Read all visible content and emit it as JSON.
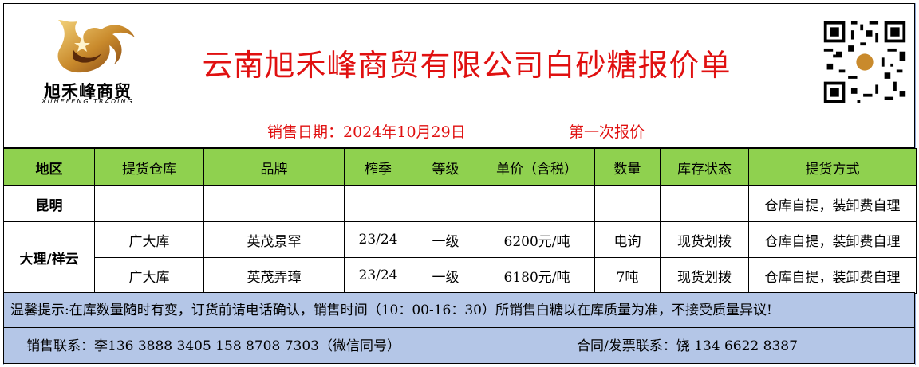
{
  "header": {
    "logo_cn": "旭禾峰商贸",
    "logo_en": "XUHEFENG TRADING",
    "title": "云南旭禾峰商贸有限公司白砂糖报价单",
    "title_color": "#e01010"
  },
  "date_row": {
    "date_text": "销售日期：2024年10月29日",
    "round_text": "第一次报价"
  },
  "table": {
    "header_color": "#8fd14f",
    "columns": [
      "地区",
      "提货仓库",
      "品牌",
      "榨季",
      "等级",
      "单价（含税）",
      "数量",
      "库存状态",
      "提货方式"
    ],
    "rows": [
      {
        "region": "昆明",
        "warehouse": "",
        "brand": "",
        "season": "",
        "grade": "",
        "price": "",
        "qty": "",
        "stock": "",
        "pickup": "仓库自提，装卸费自理"
      },
      {
        "region": "大理/祥云",
        "warehouse": "广大库",
        "brand": "英茂景罕",
        "season": "23/24",
        "grade": "一级",
        "price": "6200元/吨",
        "qty": "电询",
        "stock": "现货划拨",
        "pickup": "仓库自提，装卸费自理"
      },
      {
        "region": "",
        "warehouse": "广大库",
        "brand": "英茂弄璋",
        "season": "23/24",
        "grade": "一级",
        "price": "6180元/吨",
        "qty": "7吨",
        "stock": "现货划拨",
        "pickup": "仓库自提，装卸费自理"
      }
    ]
  },
  "notice": "温馨提示:在库数量随时有变，订货前请电话确认，销售时间（10：00-16：30）所销售白糖以在库质量为准，不接受质量异议!",
  "contact": {
    "sales": "销售联系：李136  3888  3405        158  8708  7303（微信同号）",
    "contract": "合同/发票联系：饶  134  6622  8387",
    "bg_color": "#b4c6e7"
  },
  "icons": [
    "logo-emblem-icon",
    "qr-code-icon"
  ]
}
